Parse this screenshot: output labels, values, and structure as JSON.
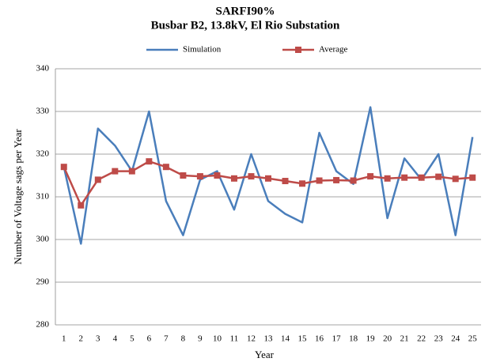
{
  "chart_data": {
    "type": "line",
    "title": "SARFI90%",
    "subtitle": "Busbar B2, 13.8kV, El Rio Substation",
    "x_label": "Year",
    "y_label": "Number of Voltage sags per Year",
    "categories": [
      "1",
      "2",
      "3",
      "4",
      "5",
      "6",
      "7",
      "8",
      "9",
      "10",
      "11",
      "12",
      "13",
      "14",
      "15",
      "16",
      "17",
      "18",
      "19",
      "20",
      "21",
      "22",
      "23",
      "24",
      "25"
    ],
    "series": [
      {
        "name": "Simulation",
        "color": "#4a7ebb",
        "marker": "none",
        "values": [
          317,
          299,
          326,
          322,
          316,
          330,
          309,
          301,
          314,
          316,
          307,
          320,
          309,
          306,
          304,
          325,
          316,
          313,
          331,
          305,
          319,
          314,
          320,
          301,
          324
        ]
      },
      {
        "name": "Average",
        "color": "#be4b48",
        "marker": "square",
        "values": [
          317,
          308,
          314,
          316,
          316,
          318.3,
          317,
          315,
          314.8,
          315,
          314.3,
          314.8,
          314.3,
          313.7,
          313.1,
          313.8,
          313.9,
          313.8,
          314.8,
          314.3,
          314.5,
          314.5,
          314.7,
          314.2,
          314.5
        ]
      }
    ],
    "ylim": [
      280,
      340
    ],
    "yticks": [
      280,
      290,
      300,
      310,
      320,
      330,
      340
    ],
    "grid": true,
    "legend": "top"
  }
}
